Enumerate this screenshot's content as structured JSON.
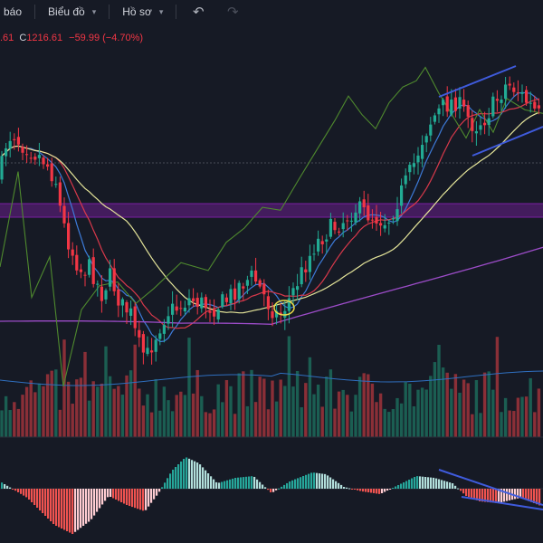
{
  "toolbar": {
    "alerts_label": "báo",
    "chart_menu_label": "Biểu đồ",
    "profile_menu_label": "Hồ sơ",
    "undo_icon": "undo-icon",
    "redo_icon": "redo-icon",
    "chevron_icon": "chevron-down-icon"
  },
  "legend": {
    "prev_close_fragment": ".61",
    "close_prefix": "C",
    "close_value": "1216.61",
    "change": "−59.99 (−4.70%)"
  },
  "colors": {
    "background": "#161a25",
    "up": "#22ab94",
    "down": "#f23645",
    "up_volume": "#1b5e52",
    "down_volume": "#8a2f37",
    "ma_fast": "#3d7bd9",
    "ma_mid": "#d9394b",
    "ma_slow": "#e5e59a",
    "ma_long": "#9c4cc8",
    "rs_line": "#4f8a2e",
    "zone": "#7b1fa2",
    "trendline": "#3f5bdc",
    "highlight_circle": "#e8d84a",
    "histogram_up_strong": "#26a69a",
    "histogram_up_weak": "#b2dfdb",
    "histogram_down_strong": "#ef5350",
    "histogram_down_weak": "#ffcdd2"
  },
  "chart_data": {
    "type": "candlestick",
    "title": "",
    "last_close": 1216.61,
    "change": -59.99,
    "change_pct": -4.7,
    "price_path": [
      {
        "i": 0,
        "y": 195
      },
      {
        "i": 6,
        "y": 160
      },
      {
        "i": 14,
        "y": 145
      },
      {
        "i": 22,
        "y": 158
      },
      {
        "i": 30,
        "y": 162
      },
      {
        "i": 40,
        "y": 170
      },
      {
        "i": 50,
        "y": 178
      },
      {
        "i": 62,
        "y": 200
      },
      {
        "i": 68,
        "y": 240
      },
      {
        "i": 78,
        "y": 275
      },
      {
        "i": 90,
        "y": 300
      },
      {
        "i": 100,
        "y": 295
      },
      {
        "i": 112,
        "y": 325
      },
      {
        "i": 122,
        "y": 305
      },
      {
        "i": 134,
        "y": 338
      },
      {
        "i": 144,
        "y": 345
      },
      {
        "i": 152,
        "y": 380
      },
      {
        "i": 162,
        "y": 395
      },
      {
        "i": 172,
        "y": 370
      },
      {
        "i": 184,
        "y": 345
      },
      {
        "i": 196,
        "y": 340
      },
      {
        "i": 210,
        "y": 330
      },
      {
        "i": 222,
        "y": 335
      },
      {
        "i": 236,
        "y": 340
      },
      {
        "i": 250,
        "y": 332
      },
      {
        "i": 264,
        "y": 315
      },
      {
        "i": 280,
        "y": 305
      },
      {
        "i": 296,
        "y": 335
      },
      {
        "i": 308,
        "y": 350
      },
      {
        "i": 320,
        "y": 330
      },
      {
        "i": 334,
        "y": 300
      },
      {
        "i": 348,
        "y": 270
      },
      {
        "i": 362,
        "y": 255
      },
      {
        "i": 378,
        "y": 245
      },
      {
        "i": 392,
        "y": 230
      },
      {
        "i": 410,
        "y": 238
      },
      {
        "i": 428,
        "y": 245
      },
      {
        "i": 442,
        "y": 215
      },
      {
        "i": 456,
        "y": 185
      },
      {
        "i": 468,
        "y": 150
      },
      {
        "i": 478,
        "y": 130
      },
      {
        "i": 490,
        "y": 118
      },
      {
        "i": 502,
        "y": 110
      },
      {
        "i": 514,
        "y": 125
      },
      {
        "i": 524,
        "y": 140
      },
      {
        "i": 536,
        "y": 130
      },
      {
        "i": 548,
        "y": 112
      },
      {
        "i": 560,
        "y": 92
      },
      {
        "i": 572,
        "y": 100
      },
      {
        "i": 584,
        "y": 115
      },
      {
        "i": 596,
        "y": 128
      }
    ],
    "indicators": [
      "MA fast",
      "MA mid",
      "MA slow",
      "MA long",
      "RS line",
      "Volume",
      "Momentum histogram"
    ]
  }
}
